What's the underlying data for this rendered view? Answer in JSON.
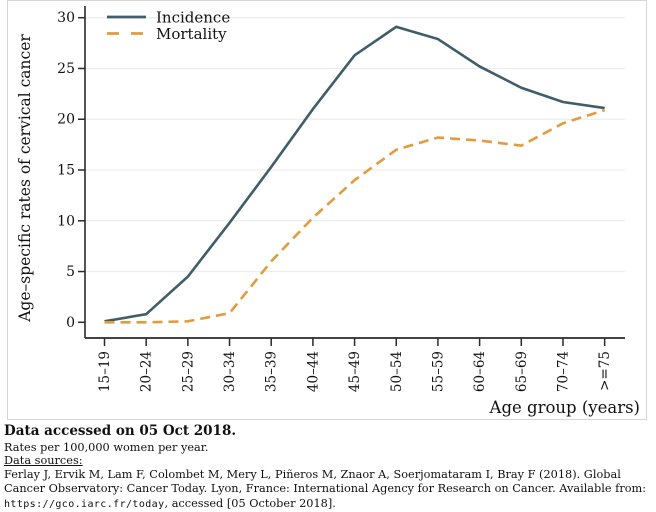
{
  "chart_data": {
    "type": "line",
    "title": "",
    "xlabel": "Age group (years)",
    "ylabel": "Age–specific rates of cervical cancer",
    "categories": [
      "15–19",
      "20–24",
      "25–29",
      "30–34",
      "35–39",
      "40–44",
      "45–49",
      "50–54",
      "55–59",
      "60–64",
      "65–69",
      "70–74",
      ">=75"
    ],
    "series": [
      {
        "name": "Incidence",
        "style": "solid",
        "values": [
          0.1,
          0.8,
          4.5,
          9.8,
          15.3,
          21.0,
          26.3,
          29.1,
          27.9,
          25.2,
          23.1,
          21.7,
          21.1
        ]
      },
      {
        "name": "Mortality",
        "style": "dashed",
        "values": [
          0.0,
          0.0,
          0.1,
          0.9,
          6.0,
          10.3,
          14.0,
          17.0,
          18.2,
          17.9,
          17.4,
          19.6,
          20.9
        ]
      }
    ],
    "ylim": [
      0,
      30
    ],
    "yticks": [
      0,
      5,
      10,
      15,
      20,
      25,
      30
    ],
    "grid": "horizontal",
    "legend_position": "top-left"
  },
  "colors": {
    "incidence": "#3f5e69",
    "mortality": "#e29b3d",
    "grid": "#ededed",
    "axis": "#2a2a2a",
    "text": "#111111",
    "figure_border": "#d6d6d6"
  },
  "footer": {
    "accessed_bold": "Data accessed on 05 Oct 2018.",
    "rates_note": "Rates per 100,000 women per year.",
    "sources_label": "Data sources:",
    "citation_before_url": "Ferlay J, Ervik M, Lam F, Colombet M, Mery L, Piñeros M, Znaor A, Soerjomataram I, Bray F (2018). Global Cancer Observatory: Cancer Today. Lyon, France: International Agency for Research on Cancer. Available from: ",
    "citation_url": "https://gco.iarc.fr/today",
    "citation_after_url": ", accessed [05 October 2018]."
  }
}
